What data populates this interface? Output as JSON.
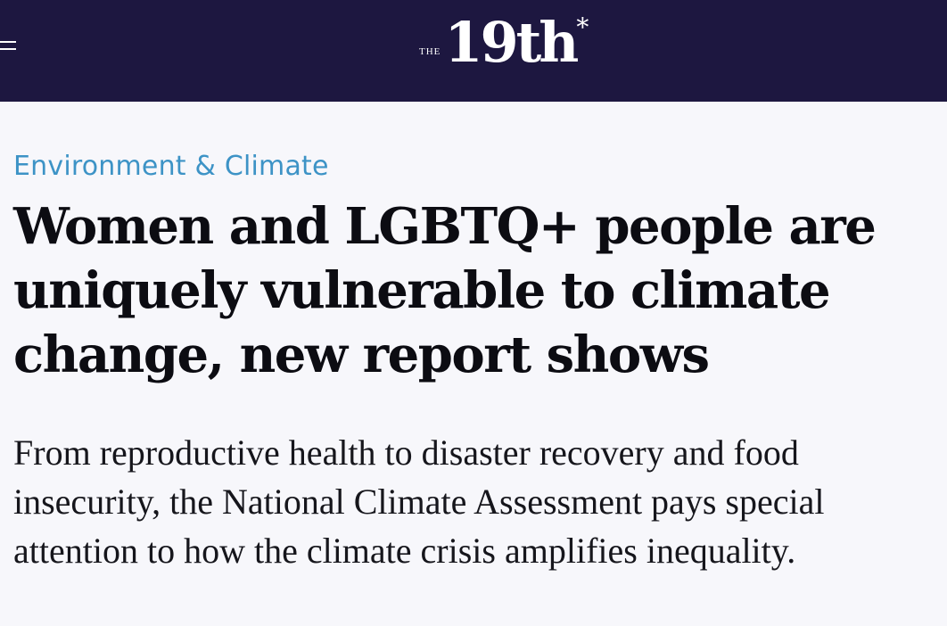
{
  "header": {
    "menu_icon": "hamburger-icon",
    "logo": {
      "prefix": "THE",
      "name": "19th",
      "mark": "*"
    }
  },
  "article": {
    "category": "Environment & Climate",
    "headline": "Women and LGBTQ+ people are uniquely vulnerable to climate change, new report shows",
    "deck": "From reproductive health to disaster recovery and food insecurity, the National Climate Assessment pays special attention to how the climate crisis amplifies inequality."
  },
  "colors": {
    "header_bg": "#1d1740",
    "category": "#3d93c6",
    "page_bg": "#f7f7fb"
  }
}
